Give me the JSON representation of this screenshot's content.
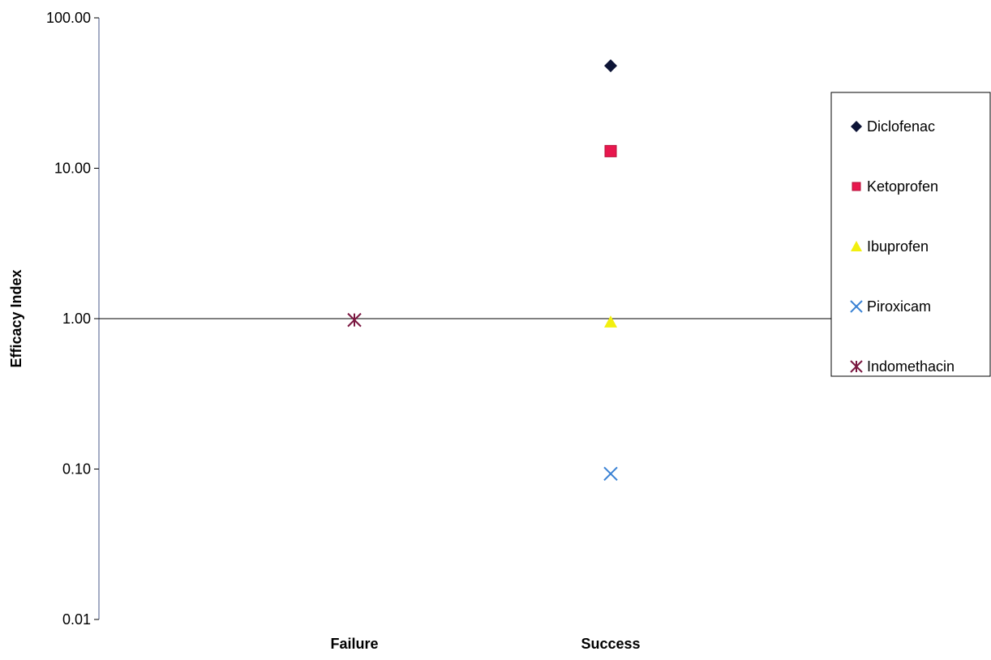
{
  "chart_data": {
    "type": "scatter",
    "ylabel": "Efficacy Index",
    "xlabel": "",
    "y_scale": "log",
    "ylim": [
      0.01,
      100
    ],
    "y_ticks": [
      "100.00",
      "10.00",
      "1.00",
      "0.10",
      "0.01"
    ],
    "y_tick_values": [
      100,
      10,
      1,
      0.1,
      0.01
    ],
    "categories": [
      "Failure",
      "Success"
    ],
    "reference_line_y": 1,
    "grid": false,
    "legend_position": "right",
    "series": [
      {
        "name": "Diclofenac",
        "marker": "diamond",
        "color": "#0d1436",
        "points": [
          {
            "category": "Success",
            "y": 48
          }
        ]
      },
      {
        "name": "Ketoprofen",
        "marker": "square",
        "color": "#e8174e",
        "points": [
          {
            "category": "Success",
            "y": 13
          }
        ]
      },
      {
        "name": "Ibuprofen",
        "marker": "triangle",
        "color": "#f2ef0f",
        "points": [
          {
            "category": "Success",
            "y": 0.95
          }
        ]
      },
      {
        "name": "Piroxicam",
        "marker": "x",
        "color": "#3a82d4",
        "points": [
          {
            "category": "Success",
            "y": 0.093
          }
        ]
      },
      {
        "name": "Indomethacin",
        "marker": "star",
        "color": "#7a1740",
        "points": [
          {
            "category": "Failure",
            "y": 0.98
          }
        ]
      }
    ]
  }
}
